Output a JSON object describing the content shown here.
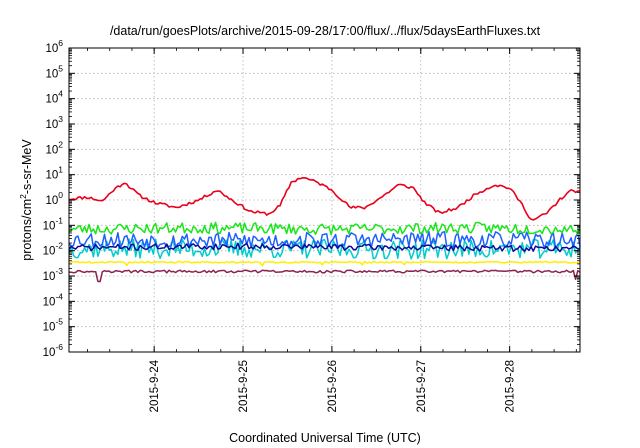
{
  "chart_data": {
    "type": "line",
    "title": "/data/run/goesPlots/archive/2015-09-28/17:00/flux/../flux/5daysEarthFluxes.txt",
    "xlabel": "Coordinated Universal Time (UTC)",
    "ylabel": {
      "pre": "protons/cm",
      "sup": "2",
      "post": "-s-sr-MeV"
    },
    "yscale": "log",
    "ylim": [
      1e-06,
      1000000.0
    ],
    "xlim": [
      "2015-09-23 01:00",
      "2015-09-28 19:00"
    ],
    "grid": true,
    "legend": "none",
    "y_ticks": [
      {
        "exp": "-6",
        "value": 1e-06
      },
      {
        "exp": "-5",
        "value": 1e-05
      },
      {
        "exp": "-4",
        "value": 0.0001
      },
      {
        "exp": "-3",
        "value": 0.001
      },
      {
        "exp": "-2",
        "value": 0.01
      },
      {
        "exp": "-1",
        "value": 0.1
      },
      {
        "exp": "0",
        "value": 1
      },
      {
        "exp": "1",
        "value": 10
      },
      {
        "exp": "2",
        "value": 100
      },
      {
        "exp": "3",
        "value": 1000
      },
      {
        "exp": "4",
        "value": 10000
      },
      {
        "exp": "5",
        "value": 100000
      },
      {
        "exp": "6",
        "value": 1000000
      }
    ],
    "x_ticks": [
      {
        "label": "2015-9-24",
        "t": "2015-09-24 00:00"
      },
      {
        "label": "2015-9-25",
        "t": "2015-09-25 00:00"
      },
      {
        "label": "2015-9-26",
        "t": "2015-09-26 00:00"
      },
      {
        "label": "2015-9-27",
        "t": "2015-09-27 00:00"
      },
      {
        "label": "2015-9-28",
        "t": "2015-09-28 00:00"
      }
    ],
    "series": [
      {
        "color": "#e8001c",
        "noise": 0.06,
        "seed": 11,
        "points": [
          [
            "2015-09-23 01:00",
            1.1
          ],
          [
            "2015-09-23 06:00",
            1.3
          ],
          [
            "2015-09-23 10:00",
            0.9
          ],
          [
            "2015-09-23 13:00",
            2.5
          ],
          [
            "2015-09-23 16:00",
            5.0
          ],
          [
            "2015-09-23 20:00",
            1.5
          ],
          [
            "2015-09-24 00:00",
            0.8
          ],
          [
            "2015-09-24 06:00",
            0.5
          ],
          [
            "2015-09-24 12:00",
            1.0
          ],
          [
            "2015-09-24 17:00",
            2.5
          ],
          [
            "2015-09-24 21:00",
            1.0
          ],
          [
            "2015-09-25 02:00",
            0.35
          ],
          [
            "2015-09-25 07:00",
            0.28
          ],
          [
            "2015-09-25 10:00",
            0.6
          ],
          [
            "2015-09-25 13:00",
            5.0
          ],
          [
            "2015-09-25 16:00",
            8.0
          ],
          [
            "2015-09-25 20:00",
            5.0
          ],
          [
            "2015-09-26 00:00",
            2.5
          ],
          [
            "2015-09-26 05:00",
            0.5
          ],
          [
            "2015-09-26 09:00",
            0.5
          ],
          [
            "2015-09-26 14:00",
            1.5
          ],
          [
            "2015-09-26 18:00",
            4.0
          ],
          [
            "2015-09-26 22:00",
            3.0
          ],
          [
            "2015-09-27 01:00",
            0.8
          ],
          [
            "2015-09-27 05:00",
            0.3
          ],
          [
            "2015-09-27 10:00",
            0.5
          ],
          [
            "2015-09-27 15:00",
            1.8
          ],
          [
            "2015-09-27 20:00",
            4.0
          ],
          [
            "2015-09-28 00:00",
            3.0
          ],
          [
            "2015-09-28 03:00",
            0.8
          ],
          [
            "2015-09-28 06:00",
            0.15
          ],
          [
            "2015-09-28 10:00",
            0.3
          ],
          [
            "2015-09-28 14:00",
            1.2
          ],
          [
            "2015-09-28 17:00",
            2.5
          ],
          [
            "2015-09-28 19:00",
            2.0
          ]
        ]
      },
      {
        "color": "#19e619",
        "noise": 0.22,
        "seed": 23,
        "points": [
          [
            "2015-09-23 01:00",
            0.07
          ],
          [
            "2015-09-24 12:00",
            0.08
          ],
          [
            "2015-09-26 00:00",
            0.07
          ],
          [
            "2015-09-27 12:00",
            0.08
          ],
          [
            "2015-09-28 19:00",
            0.07
          ]
        ]
      },
      {
        "color": "#00cccc",
        "noise": 0.38,
        "seed": 37,
        "points": [
          [
            "2015-09-23 01:00",
            0.012
          ],
          [
            "2015-09-25 00:00",
            0.012
          ],
          [
            "2015-09-27 00:00",
            0.011
          ],
          [
            "2015-09-28 19:00",
            0.012
          ]
        ]
      },
      {
        "color": "#1f5fff",
        "noise": 0.32,
        "seed": 53,
        "points": [
          [
            "2015-09-23 01:00",
            0.028
          ],
          [
            "2015-09-25 00:00",
            0.025
          ],
          [
            "2015-09-27 00:00",
            0.028
          ],
          [
            "2015-09-28 19:00",
            0.025
          ]
        ]
      },
      {
        "color": "#0a0a9a",
        "noise": 0.12,
        "seed": 71,
        "points": [
          [
            "2015-09-23 01:00",
            0.013
          ],
          [
            "2015-09-25 00:00",
            0.015
          ],
          [
            "2015-09-27 00:00",
            0.013
          ],
          [
            "2015-09-28 19:00",
            0.012
          ]
        ]
      },
      {
        "color": "#ffee00",
        "noise": 0.03,
        "seed": 89,
        "points": [
          [
            "2015-09-23 01:00",
            0.0035
          ],
          [
            "2015-09-28 19:00",
            0.0035
          ]
        ]
      },
      {
        "color": "#8b2252",
        "noise": 0.05,
        "seed": 97,
        "points": [
          [
            "2015-09-23 01:00",
            0.0015
          ],
          [
            "2015-09-28 19:00",
            0.0015
          ]
        ]
      }
    ]
  }
}
